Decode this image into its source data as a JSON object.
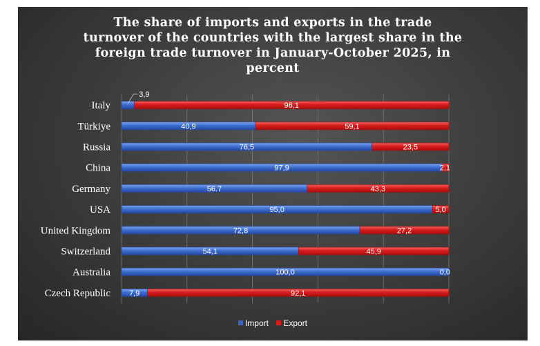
{
  "chart_data": {
    "type": "bar",
    "orientation": "horizontal",
    "stacked": true,
    "title_lines": [
      "The share of imports and exports in the trade",
      "turnover of the countries with the largest share in the",
      "foreign trade turnover in January-October 2025, in",
      "percent"
    ],
    "categories": [
      "Italy",
      "Türkiye",
      "Russia",
      "China",
      "Germany",
      "USA",
      "United Kingdom",
      "Switzerland",
      "Australia",
      "Czech Republic"
    ],
    "series": [
      {
        "name": "Import",
        "color": "#3a66c7",
        "values": [
          3.9,
          40.9,
          76.5,
          97.9,
          56.7,
          95.0,
          72.8,
          54.1,
          100.0,
          7.9
        ],
        "labels": [
          "3,9",
          "40,9",
          "76,5",
          "97,9",
          "56.7",
          "95,0",
          "72,8",
          "54,1",
          "100,0",
          "7,9"
        ]
      },
      {
        "name": "Export",
        "color": "#d81c1c",
        "values": [
          96.1,
          59.1,
          23.5,
          2.1,
          43.3,
          5.0,
          27.2,
          45.9,
          0.0,
          92.1
        ],
        "labels": [
          "96,1",
          "59,1",
          "23,5",
          "2,1",
          "43,3",
          "5,0",
          "27,2",
          "45,9",
          "0,0",
          "92,1"
        ]
      }
    ],
    "xlim": [
      0,
      100
    ],
    "grid": true,
    "legend_position": "bottom"
  }
}
